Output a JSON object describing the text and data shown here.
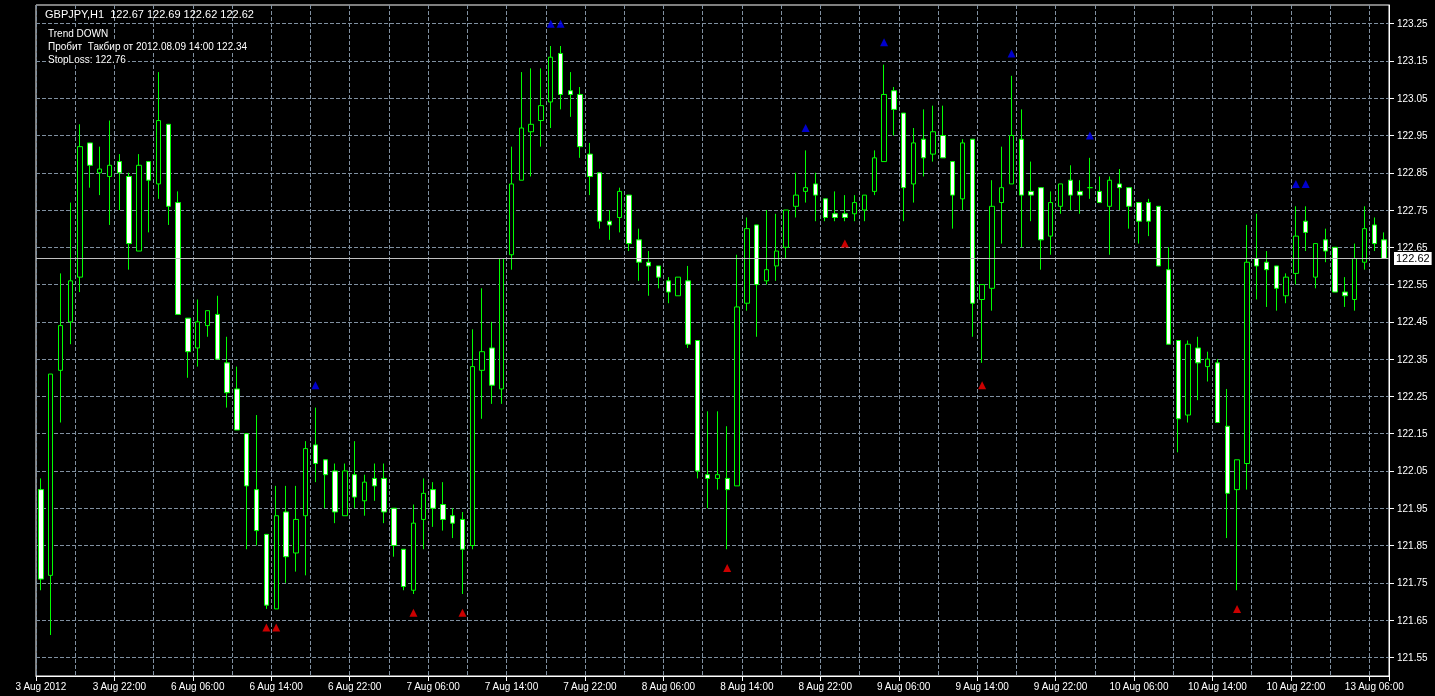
{
  "chart_data": {
    "type": "candlestick",
    "title": "GBPJPY,H1  122.67 122.69 122.62 122.62",
    "annotations": [
      "Trend DOWN",
      "Пробит  Такбир от 2012.08.09 14:00 122.34",
      "StopLoss: 122.76"
    ],
    "categories": [
      "3 Aug 2012",
      null,
      null,
      null,
      null,
      null,
      null,
      null,
      "3 Aug 22:00",
      null,
      null,
      null,
      null,
      null,
      null,
      null,
      "6 Aug 06:00",
      null,
      null,
      null,
      null,
      null,
      null,
      null,
      "6 Aug 14:00",
      null,
      null,
      null,
      null,
      null,
      null,
      null,
      "6 Aug 22:00",
      null,
      null,
      null,
      null,
      null,
      null,
      null,
      "7 Aug 06:00",
      null,
      null,
      null,
      null,
      null,
      null,
      null,
      "7 Aug 14:00",
      null,
      null,
      null,
      null,
      null,
      null,
      null,
      "7 Aug 22:00",
      null,
      null,
      null,
      null,
      null,
      null,
      null,
      "8 Aug 06:00",
      null,
      null,
      null,
      null,
      null,
      null,
      null,
      "8 Aug 14:00",
      null,
      null,
      null,
      null,
      null,
      null,
      null,
      "8 Aug 22:00",
      null,
      null,
      null,
      null,
      null,
      null,
      null,
      "9 Aug 06:00",
      null,
      null,
      null,
      null,
      null,
      null,
      null,
      "9 Aug 14:00",
      null,
      null,
      null,
      null,
      null,
      null,
      null,
      "9 Aug 22:00",
      null,
      null,
      null,
      null,
      null,
      null,
      null,
      "10 Aug 06:00",
      null,
      null,
      null,
      null,
      null,
      null,
      null,
      "10 Aug 14:00",
      null,
      null,
      null,
      null,
      null,
      null,
      null,
      "10 Aug 22:00",
      null,
      null,
      null,
      null,
      null,
      null,
      null,
      "13 Aug 06:00",
      null
    ],
    "color": "#00ff00",
    "ohlc": [
      [
        122.0,
        122.03,
        121.73,
        121.76
      ],
      [
        121.77,
        122.31,
        121.61,
        122.31
      ],
      [
        122.32,
        122.58,
        122.18,
        122.44
      ],
      [
        122.45,
        122.77,
        122.39,
        122.56
      ],
      [
        122.57,
        122.98,
        122.53,
        122.92
      ],
      [
        122.93,
        122.93,
        122.81,
        122.87
      ],
      [
        122.85,
        122.92,
        122.79,
        122.86
      ],
      [
        122.84,
        122.99,
        122.71,
        122.87
      ],
      [
        122.88,
        122.9,
        122.75,
        122.85
      ],
      [
        122.84,
        122.85,
        122.59,
        122.66
      ],
      [
        122.64,
        122.9,
        122.64,
        122.87
      ],
      [
        122.88,
        122.88,
        122.69,
        122.83
      ],
      [
        122.82,
        123.12,
        122.78,
        122.99
      ],
      [
        122.98,
        122.98,
        122.71,
        122.76
      ],
      [
        122.77,
        122.8,
        122.47,
        122.47
      ],
      [
        122.46,
        122.46,
        122.3,
        122.37
      ],
      [
        122.38,
        122.51,
        122.33,
        122.45
      ],
      [
        122.44,
        122.48,
        122.41,
        122.48
      ],
      [
        122.47,
        122.52,
        122.35,
        122.35
      ],
      [
        122.34,
        122.41,
        122.22,
        122.26
      ],
      [
        122.27,
        122.33,
        122.16,
        122.16
      ],
      [
        122.15,
        122.15,
        121.84,
        122.01
      ],
      [
        122.0,
        122.2,
        121.85,
        121.89
      ],
      [
        121.88,
        121.88,
        121.68,
        121.69
      ],
      [
        121.68,
        122.01,
        121.68,
        121.93
      ],
      [
        121.94,
        122.01,
        121.75,
        121.82
      ],
      [
        121.83,
        122.01,
        121.78,
        121.92
      ],
      [
        121.93,
        122.13,
        121.77,
        122.11
      ],
      [
        122.12,
        122.22,
        122.02,
        122.07
      ],
      [
        122.08,
        122.08,
        121.95,
        122.04
      ],
      [
        122.05,
        122.07,
        121.91,
        121.94
      ],
      [
        121.93,
        122.07,
        121.93,
        122.05
      ],
      [
        122.04,
        122.13,
        121.95,
        121.98
      ],
      [
        121.97,
        122.04,
        121.93,
        122.02
      ],
      [
        122.03,
        122.07,
        121.97,
        122.01
      ],
      [
        122.03,
        122.07,
        121.91,
        121.94
      ],
      [
        121.95,
        121.95,
        121.82,
        121.85
      ],
      [
        121.84,
        121.84,
        121.73,
        121.74
      ],
      [
        121.73,
        121.96,
        121.72,
        121.91
      ],
      [
        121.92,
        122.03,
        121.84,
        121.99
      ],
      [
        122.0,
        122.02,
        121.9,
        121.95
      ],
      [
        121.96,
        122.02,
        121.89,
        121.92
      ],
      [
        121.93,
        121.95,
        121.87,
        121.91
      ],
      [
        121.92,
        121.94,
        121.72,
        121.84
      ],
      [
        121.85,
        122.43,
        121.84,
        122.33
      ],
      [
        122.32,
        122.54,
        122.19,
        122.37
      ],
      [
        122.38,
        122.45,
        122.23,
        122.28
      ],
      [
        122.27,
        122.62,
        122.23,
        122.62
      ],
      [
        122.63,
        122.92,
        122.59,
        122.82
      ],
      [
        122.83,
        123.12,
        122.83,
        122.97
      ],
      [
        122.96,
        123.13,
        122.84,
        122.98
      ],
      [
        122.99,
        123.13,
        122.92,
        123.03
      ],
      [
        123.04,
        123.19,
        122.97,
        123.16
      ],
      [
        123.17,
        123.19,
        123.02,
        123.06
      ],
      [
        123.07,
        123.12,
        123.0,
        123.06
      ],
      [
        123.06,
        123.08,
        122.89,
        122.92
      ],
      [
        122.9,
        122.93,
        122.79,
        122.84
      ],
      [
        122.85,
        122.85,
        122.7,
        122.72
      ],
      [
        122.72,
        122.75,
        122.67,
        122.71
      ],
      [
        122.73,
        122.81,
        122.69,
        122.8
      ],
      [
        122.79,
        122.79,
        122.64,
        122.66
      ],
      [
        122.67,
        122.7,
        122.56,
        122.61
      ],
      [
        122.61,
        122.64,
        122.52,
        122.6
      ],
      [
        122.6,
        122.6,
        122.54,
        122.57
      ],
      [
        122.56,
        122.57,
        122.5,
        122.53
      ],
      [
        122.52,
        122.57,
        122.52,
        122.57
      ],
      [
        122.56,
        122.6,
        122.38,
        122.39
      ],
      [
        122.4,
        122.4,
        122.03,
        122.05
      ],
      [
        122.04,
        122.21,
        121.95,
        122.03
      ],
      [
        122.03,
        122.21,
        122.0,
        122.04
      ],
      [
        122.03,
        122.17,
        121.84,
        122.0
      ],
      [
        122.01,
        122.63,
        122.01,
        122.49
      ],
      [
        122.5,
        122.73,
        122.48,
        122.7
      ],
      [
        122.71,
        122.71,
        122.41,
        122.55
      ],
      [
        122.56,
        122.75,
        122.55,
        122.59
      ],
      [
        122.6,
        122.74,
        122.56,
        122.64
      ],
      [
        122.65,
        122.75,
        122.62,
        122.75
      ],
      [
        122.76,
        122.85,
        122.73,
        122.79
      ],
      [
        122.8,
        122.91,
        122.77,
        122.81
      ],
      [
        122.82,
        122.85,
        122.72,
        122.79
      ],
      [
        122.78,
        122.78,
        122.72,
        122.73
      ],
      [
        122.74,
        122.8,
        122.72,
        122.73
      ],
      [
        122.74,
        122.79,
        122.72,
        122.73
      ],
      [
        122.74,
        122.79,
        122.72,
        122.77
      ],
      [
        122.75,
        122.79,
        122.72,
        122.79
      ],
      [
        122.8,
        122.91,
        122.79,
        122.89
      ],
      [
        122.88,
        123.14,
        122.88,
        123.06
      ],
      [
        123.07,
        123.08,
        122.95,
        123.02
      ],
      [
        123.01,
        123.01,
        122.72,
        122.81
      ],
      [
        122.82,
        122.97,
        122.77,
        122.93
      ],
      [
        122.94,
        123.02,
        122.84,
        122.89
      ],
      [
        122.9,
        123.03,
        122.88,
        122.96
      ],
      [
        122.95,
        123.03,
        122.89,
        122.89
      ],
      [
        122.88,
        122.88,
        122.7,
        122.79
      ],
      [
        122.78,
        122.94,
        122.75,
        122.93
      ],
      [
        122.94,
        122.94,
        122.41,
        122.5
      ],
      [
        122.51,
        122.55,
        122.34,
        122.55
      ],
      [
        122.54,
        122.83,
        122.48,
        122.76
      ],
      [
        122.77,
        122.92,
        122.66,
        122.81
      ],
      [
        122.82,
        123.11,
        122.82,
        122.95
      ],
      [
        122.94,
        123.02,
        122.65,
        122.79
      ],
      [
        122.8,
        122.88,
        122.72,
        122.79
      ],
      [
        122.81,
        122.81,
        122.59,
        122.67
      ],
      [
        122.68,
        122.8,
        122.63,
        122.77
      ],
      [
        122.76,
        122.82,
        122.74,
        122.82
      ],
      [
        122.83,
        122.87,
        122.75,
        122.79
      ],
      [
        122.8,
        122.83,
        122.74,
        122.79
      ],
      [
        122.81,
        122.89,
        122.78,
        122.81
      ],
      [
        122.8,
        122.84,
        122.77,
        122.77
      ],
      [
        122.76,
        122.84,
        122.63,
        122.83
      ],
      [
        122.82,
        122.86,
        122.75,
        122.81
      ],
      [
        122.81,
        122.81,
        122.7,
        122.76
      ],
      [
        122.77,
        122.77,
        122.66,
        122.72
      ],
      [
        122.77,
        122.78,
        122.68,
        122.72
      ],
      [
        122.76,
        122.76,
        122.6,
        122.6
      ],
      [
        122.59,
        122.65,
        122.39,
        122.39
      ],
      [
        122.4,
        122.4,
        122.1,
        122.19
      ],
      [
        122.2,
        122.4,
        122.18,
        122.39
      ],
      [
        122.38,
        122.41,
        122.24,
        122.34
      ],
      [
        122.33,
        122.37,
        122.29,
        122.35
      ],
      [
        122.34,
        122.35,
        122.18,
        122.18
      ],
      [
        122.17,
        122.27,
        121.87,
        121.99
      ],
      [
        122.0,
        122.08,
        121.73,
        122.08
      ],
      [
        122.07,
        122.71,
        122.0,
        122.61
      ],
      [
        122.62,
        122.74,
        122.51,
        122.6
      ],
      [
        122.61,
        122.64,
        122.49,
        122.59
      ],
      [
        122.6,
        122.6,
        122.48,
        122.54
      ],
      [
        122.52,
        122.58,
        122.5,
        122.57
      ],
      [
        122.58,
        122.76,
        122.55,
        122.68
      ],
      [
        122.72,
        122.76,
        122.64,
        122.69
      ],
      [
        122.57,
        122.66,
        122.54,
        122.66
      ],
      [
        122.67,
        122.7,
        122.61,
        122.64
      ],
      [
        122.65,
        122.65,
        122.53,
        122.53
      ],
      [
        122.53,
        122.57,
        122.49,
        122.52
      ],
      [
        122.51,
        122.66,
        122.48,
        122.62
      ],
      [
        122.61,
        122.76,
        122.59,
        122.7
      ],
      [
        122.71,
        122.73,
        122.64,
        122.66
      ],
      [
        122.67,
        122.69,
        122.62,
        122.62
      ]
    ],
    "series": [
      {
        "type": "scatter",
        "color": "#0000ff",
        "marker": "triangle",
        "values": [
          null,
          null,
          null,
          null,
          null,
          null,
          null,
          null,
          null,
          null,
          null,
          null,
          null,
          null,
          null,
          null,
          null,
          null,
          null,
          null,
          null,
          null,
          null,
          null,
          null,
          null,
          null,
          null,
          122.28,
          null,
          null,
          null,
          null,
          null,
          null,
          null,
          null,
          null,
          null,
          null,
          null,
          null,
          null,
          null,
          null,
          null,
          null,
          null,
          null,
          null,
          null,
          null,
          123.25,
          123.25,
          null,
          null,
          null,
          null,
          null,
          null,
          null,
          null,
          null,
          null,
          null,
          null,
          null,
          null,
          null,
          null,
          null,
          null,
          null,
          null,
          null,
          null,
          null,
          null,
          122.97,
          null,
          null,
          null,
          null,
          null,
          null,
          null,
          123.2,
          null,
          null,
          null,
          null,
          null,
          null,
          null,
          null,
          null,
          null,
          null,
          null,
          123.17,
          null,
          null,
          null,
          null,
          null,
          null,
          null,
          122.95,
          null,
          null,
          null,
          null,
          null,
          null,
          null,
          null,
          null,
          null,
          null,
          null,
          null,
          null,
          null,
          null,
          null,
          null,
          null,
          null,
          122.82,
          122.82,
          null,
          null,
          null,
          null,
          null,
          null,
          null,
          null
        ]
      },
      {
        "type": "scatter",
        "color": "#ff0000",
        "marker": "triangle",
        "values": [
          null,
          null,
          null,
          null,
          null,
          null,
          null,
          null,
          null,
          null,
          null,
          null,
          null,
          null,
          null,
          null,
          null,
          null,
          null,
          null,
          null,
          null,
          null,
          121.63,
          121.63,
          null,
          null,
          null,
          null,
          null,
          null,
          null,
          null,
          null,
          null,
          null,
          null,
          null,
          121.67,
          null,
          null,
          null,
          null,
          121.67,
          null,
          null,
          null,
          null,
          null,
          null,
          null,
          null,
          null,
          null,
          null,
          null,
          null,
          null,
          null,
          null,
          null,
          null,
          null,
          null,
          null,
          null,
          null,
          null,
          null,
          null,
          121.79,
          null,
          null,
          null,
          null,
          null,
          null,
          null,
          null,
          null,
          null,
          null,
          122.66,
          null,
          null,
          null,
          null,
          null,
          null,
          null,
          null,
          null,
          null,
          null,
          null,
          null,
          122.28,
          null,
          null,
          null,
          null,
          null,
          null,
          null,
          null,
          null,
          null,
          null,
          null,
          null,
          null,
          null,
          null,
          null,
          null,
          null,
          null,
          null,
          null,
          null,
          null,
          null,
          121.68,
          null,
          null,
          null,
          null,
          null,
          null,
          null,
          null,
          null,
          null,
          null,
          null,
          null,
          null,
          null
        ]
      }
    ],
    "ylim": [
      121.5,
      123.3
    ],
    "yticks": [
      121.55,
      121.65,
      121.75,
      121.85,
      121.95,
      122.05,
      122.15,
      122.25,
      122.35,
      122.45,
      122.55,
      122.65,
      122.75,
      122.85,
      122.95,
      123.05,
      123.15,
      123.25
    ],
    "ref_lines": [
      {
        "axis": "y",
        "value": 122.62,
        "label": "122.62",
        "color": "#c0c0c0"
      }
    ],
    "grid": true
  }
}
